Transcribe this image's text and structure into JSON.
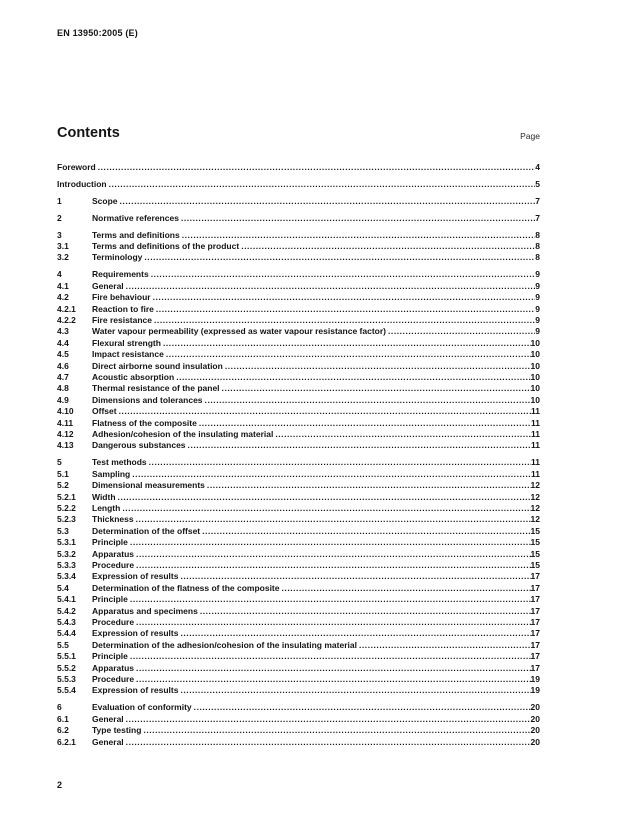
{
  "header": {
    "doc_ref": "EN 13950:2005 (E)"
  },
  "contents": {
    "title": "Contents",
    "page_label": "Page"
  },
  "toc": {
    "groups": [
      {
        "entries": [
          {
            "num": "",
            "title": "Foreword",
            "page": "4"
          }
        ]
      },
      {
        "entries": [
          {
            "num": "",
            "title": "Introduction",
            "page": "5"
          }
        ]
      },
      {
        "entries": [
          {
            "num": "1",
            "title": "Scope",
            "page": "7"
          }
        ]
      },
      {
        "entries": [
          {
            "num": "2",
            "title": "Normative references",
            "page": "7"
          }
        ]
      },
      {
        "entries": [
          {
            "num": "3",
            "title": "Terms and definitions",
            "page": "8"
          },
          {
            "num": "3.1",
            "title": "Terms and definitions of the product",
            "page": "8"
          },
          {
            "num": "3.2",
            "title": "Terminology",
            "page": "8"
          }
        ]
      },
      {
        "entries": [
          {
            "num": "4",
            "title": "Requirements",
            "page": "9"
          },
          {
            "num": "4.1",
            "title": "General",
            "page": "9"
          },
          {
            "num": "4.2",
            "title": "Fire behaviour",
            "page": "9"
          },
          {
            "num": "4.2.1",
            "title": "Reaction to fire",
            "page": "9"
          },
          {
            "num": "4.2.2",
            "title": "Fire resistance",
            "page": "9"
          },
          {
            "num": "4.3",
            "title": "Water vapour permeability (expressed as water vapour resistance factor)",
            "page": "9"
          },
          {
            "num": "4.4",
            "title": "Flexural strength",
            "page": "10"
          },
          {
            "num": "4.5",
            "title": "Impact resistance",
            "page": "10"
          },
          {
            "num": "4.6",
            "title": "Direct airborne sound insulation",
            "page": "10"
          },
          {
            "num": "4.7",
            "title": "Acoustic absorption",
            "page": "10"
          },
          {
            "num": "4.8",
            "title": "Thermal resistance of the panel",
            "page": "10"
          },
          {
            "num": "4.9",
            "title": "Dimensions and tolerances",
            "page": "10"
          },
          {
            "num": "4.10",
            "title": "Offset",
            "page": "11"
          },
          {
            "num": "4.11",
            "title": "Flatness of the composite",
            "page": "11"
          },
          {
            "num": "4.12",
            "title": "Adhesion/cohesion of the insulating material",
            "page": "11"
          },
          {
            "num": "4.13",
            "title": "Dangerous substances",
            "page": "11"
          }
        ]
      },
      {
        "entries": [
          {
            "num": "5",
            "title": "Test methods",
            "page": "11"
          },
          {
            "num": "5.1",
            "title": "Sampling",
            "page": "11"
          },
          {
            "num": "5.2",
            "title": "Dimensional measurements",
            "page": "12"
          },
          {
            "num": "5.2.1",
            "title": "Width",
            "page": "12"
          },
          {
            "num": "5.2.2",
            "title": "Length",
            "page": "12"
          },
          {
            "num": "5.2.3",
            "title": "Thickness",
            "page": "12"
          },
          {
            "num": "5.3",
            "title": "Determination of the offset",
            "page": "15"
          },
          {
            "num": "5.3.1",
            "title": "Principle",
            "page": "15"
          },
          {
            "num": "5.3.2",
            "title": "Apparatus",
            "page": "15"
          },
          {
            "num": "5.3.3",
            "title": "Procedure",
            "page": "15"
          },
          {
            "num": "5.3.4",
            "title": "Expression of results",
            "page": "17"
          },
          {
            "num": "5.4",
            "title": "Determination of the flatness of the composite",
            "page": "17"
          },
          {
            "num": "5.4.1",
            "title": "Principle",
            "page": "17"
          },
          {
            "num": "5.4.2",
            "title": "Apparatus and specimens",
            "page": "17"
          },
          {
            "num": "5.4.3",
            "title": "Procedure",
            "page": "17"
          },
          {
            "num": "5.4.4",
            "title": "Expression of results",
            "page": "17"
          },
          {
            "num": "5.5",
            "title": "Determination of the adhesion/cohesion of the insulating material",
            "page": "17"
          },
          {
            "num": "5.5.1",
            "title": "Principle",
            "page": "17"
          },
          {
            "num": "5.5.2",
            "title": "Apparatus",
            "page": "17"
          },
          {
            "num": "5.5.3",
            "title": "Procedure",
            "page": "19"
          },
          {
            "num": "5.5.4",
            "title": "Expression of results",
            "page": "19"
          }
        ]
      },
      {
        "entries": [
          {
            "num": "6",
            "title": "Evaluation of conformity",
            "page": "20"
          },
          {
            "num": "6.1",
            "title": "General",
            "page": "20"
          },
          {
            "num": "6.2",
            "title": "Type testing",
            "page": "20"
          },
          {
            "num": "6.2.1",
            "title": "General",
            "page": "20"
          }
        ]
      }
    ]
  },
  "footer": {
    "page_number": "2"
  }
}
